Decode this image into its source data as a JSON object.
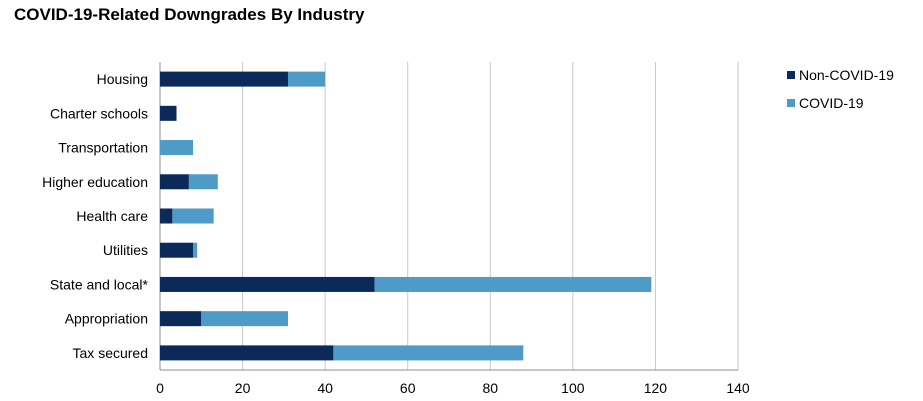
{
  "title": "COVID-19-Related Downgrades By Industry",
  "chart_data": {
    "type": "bar",
    "orientation": "horizontal",
    "stacked": true,
    "title": "COVID-19-Related Downgrades By Industry",
    "xlabel": "",
    "ylabel": "",
    "xlim": [
      0,
      140
    ],
    "x_ticks": [
      "0",
      "20",
      "40",
      "60",
      "80",
      "100",
      "120",
      "140"
    ],
    "x_tick_values": [
      0,
      20,
      40,
      60,
      80,
      100,
      120,
      140
    ],
    "grid": "vertical",
    "legend_position": "top-right",
    "categories": [
      "Housing",
      "Charter schools",
      "Transportation",
      "Higher education",
      "Health care",
      "Utilities",
      "State and local*",
      "Appropriation",
      "Tax secured"
    ],
    "series": [
      {
        "name": "Non-COVID-19",
        "color": "#0b2a5a",
        "values": [
          31,
          4,
          0,
          7,
          3,
          8,
          52,
          10,
          42
        ]
      },
      {
        "name": "COVID-19",
        "color": "#4f9bc7",
        "values": [
          9,
          0,
          8,
          7,
          10,
          1,
          67,
          21,
          46
        ]
      }
    ]
  }
}
